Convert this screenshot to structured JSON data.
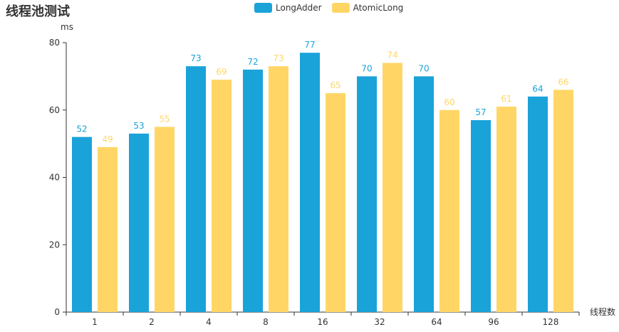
{
  "chart_data": {
    "type": "bar",
    "title": "线程池测试",
    "xlabel": "线程数",
    "ylabel": "ms",
    "ylim": [
      0,
      80
    ],
    "yticks": [
      0,
      20,
      40,
      60,
      80
    ],
    "categories": [
      "1",
      "2",
      "4",
      "8",
      "16",
      "32",
      "64",
      "96",
      "128"
    ],
    "series": [
      {
        "name": "LongAdder",
        "color": "#1aa3d9",
        "values": [
          52,
          53,
          73,
          72,
          77,
          70,
          70,
          57,
          64
        ]
      },
      {
        "name": "AtomicLong",
        "color": "#ffd666",
        "values": [
          49,
          55,
          69,
          73,
          65,
          74,
          60,
          61,
          66
        ]
      }
    ],
    "legend_position": "top-center",
    "grid": false
  }
}
